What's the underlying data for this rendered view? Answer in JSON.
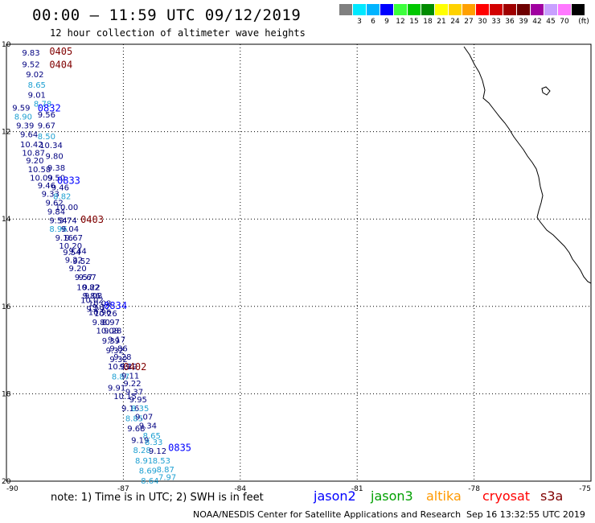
{
  "header": {
    "title": "00:00 – 11:59 UTC 09/12/2019",
    "subtitle": "12 hour collection of altimeter wave heights"
  },
  "scale": {
    "unit": "(ft)",
    "bins": [
      {
        "label": "",
        "color": "#808080"
      },
      {
        "label": "3",
        "color": "#00e8ff"
      },
      {
        "label": "6",
        "color": "#00b4ff"
      },
      {
        "label": "9",
        "color": "#0000ff"
      },
      {
        "label": "12",
        "color": "#3cff3c"
      },
      {
        "label": "15",
        "color": "#00c800"
      },
      {
        "label": "18",
        "color": "#008c00"
      },
      {
        "label": "21",
        "color": "#ffff00"
      },
      {
        "label": "24",
        "color": "#ffd200"
      },
      {
        "label": "27",
        "color": "#ffa000"
      },
      {
        "label": "30",
        "color": "#ff0000"
      },
      {
        "label": "33",
        "color": "#d20000"
      },
      {
        "label": "36",
        "color": "#a00000"
      },
      {
        "label": "39",
        "color": "#6e0000"
      },
      {
        "label": "42",
        "color": "#a000a0"
      },
      {
        "label": "45",
        "color": "#c8a0ff"
      },
      {
        "label": "70",
        "color": "#ff78ff"
      },
      {
        "label": "",
        "color": "#000000"
      }
    ]
  },
  "map": {
    "lat_labels": [
      "10",
      "12",
      "14",
      "16",
      "18",
      "20"
    ],
    "lon_labels": [
      "-90",
      "-87",
      "-84",
      "-81",
      "-78",
      "-75"
    ],
    "lon_range": [
      -90,
      -75
    ],
    "lat_range": [
      10,
      20
    ]
  },
  "colors": {
    "navy": "#000080",
    "lightblue": "#1ea0d2",
    "blue": "#0000ff",
    "darkred": "#800000"
  },
  "track_labels": [
    {
      "text": "0405",
      "lon": -88.9,
      "lat": 10.15,
      "color": "darkred"
    },
    {
      "text": "0404",
      "lon": -88.9,
      "lat": 10.45,
      "color": "darkred"
    },
    {
      "text": "0832",
      "lon": -89.2,
      "lat": 11.45,
      "color": "blue"
    },
    {
      "text": "0833",
      "lon": -88.7,
      "lat": 13.1,
      "color": "blue"
    },
    {
      "text": "0403",
      "lon": -88.1,
      "lat": 14.0,
      "color": "darkred"
    },
    {
      "text": "0834",
      "lon": -87.5,
      "lat": 15.97,
      "color": "blue"
    },
    {
      "text": "0402",
      "lon": -87.0,
      "lat": 17.37,
      "color": "darkred"
    },
    {
      "text": "0835",
      "lon": -85.85,
      "lat": 19.22,
      "color": "blue"
    }
  ],
  "readings": [
    {
      "v": "9.83",
      "lon": -89.6,
      "lat": 10.18,
      "c": "navy"
    },
    {
      "v": "9.52",
      "lon": -89.6,
      "lat": 10.45,
      "c": "navy"
    },
    {
      "v": "9.02",
      "lon": -89.5,
      "lat": 10.68,
      "c": "navy"
    },
    {
      "v": "8.65",
      "lon": -89.45,
      "lat": 10.92,
      "c": "lightblue"
    },
    {
      "v": "9.01",
      "lon": -89.45,
      "lat": 11.15,
      "c": "navy"
    },
    {
      "v": "8.78",
      "lon": -89.3,
      "lat": 11.35,
      "c": "lightblue"
    },
    {
      "v": "9.59",
      "lon": -89.85,
      "lat": 11.45,
      "c": "navy"
    },
    {
      "v": "8.90",
      "lon": -89.8,
      "lat": 11.65,
      "c": "lightblue"
    },
    {
      "v": "9.56",
      "lon": -89.2,
      "lat": 11.6,
      "c": "navy"
    },
    {
      "v": "9.39",
      "lon": -89.75,
      "lat": 11.85,
      "c": "navy"
    },
    {
      "v": "9.67",
      "lon": -89.2,
      "lat": 11.85,
      "c": "navy"
    },
    {
      "v": "9.64",
      "lon": -89.65,
      "lat": 12.05,
      "c": "navy"
    },
    {
      "v": "8.50",
      "lon": -89.2,
      "lat": 12.1,
      "c": "lightblue"
    },
    {
      "v": "10.42",
      "lon": -89.65,
      "lat": 12.28,
      "c": "navy"
    },
    {
      "v": "10.34",
      "lon": -89.15,
      "lat": 12.3,
      "c": "navy"
    },
    {
      "v": "10.87",
      "lon": -89.6,
      "lat": 12.48,
      "c": "navy"
    },
    {
      "v": "9.80",
      "lon": -89.0,
      "lat": 12.55,
      "c": "navy"
    },
    {
      "v": "9.20",
      "lon": -89.5,
      "lat": 12.65,
      "c": "navy"
    },
    {
      "v": "10.58",
      "lon": -89.45,
      "lat": 12.85,
      "c": "navy"
    },
    {
      "v": "9.38",
      "lon": -88.95,
      "lat": 12.82,
      "c": "navy"
    },
    {
      "v": "10.09",
      "lon": -89.4,
      "lat": 13.05,
      "c": "navy"
    },
    {
      "v": "9.50",
      "lon": -88.95,
      "lat": 13.05,
      "c": "navy"
    },
    {
      "v": "9.46",
      "lon": -89.2,
      "lat": 13.22,
      "c": "navy"
    },
    {
      "v": "9.46",
      "lon": -88.85,
      "lat": 13.27,
      "c": "navy"
    },
    {
      "v": "9.33",
      "lon": -89.1,
      "lat": 13.42,
      "c": "navy"
    },
    {
      "v": "8.82",
      "lon": -88.8,
      "lat": 13.47,
      "c": "lightblue"
    },
    {
      "v": "9.62",
      "lon": -89.0,
      "lat": 13.62,
      "c": "navy"
    },
    {
      "v": "10.00",
      "lon": -88.75,
      "lat": 13.72,
      "c": "navy"
    },
    {
      "v": "9.84",
      "lon": -88.95,
      "lat": 13.82,
      "c": "navy"
    },
    {
      "v": "9.54",
      "lon": -88.9,
      "lat": 14.02,
      "c": "navy"
    },
    {
      "v": "9.74",
      "lon": -88.65,
      "lat": 14.02,
      "c": "navy"
    },
    {
      "v": "8.96",
      "lon": -88.9,
      "lat": 14.22,
      "c": "lightblue"
    },
    {
      "v": "9.04",
      "lon": -88.6,
      "lat": 14.22,
      "c": "navy"
    },
    {
      "v": "9.16",
      "lon": -88.75,
      "lat": 14.42,
      "c": "navy"
    },
    {
      "v": "9.67",
      "lon": -88.5,
      "lat": 14.42,
      "c": "navy"
    },
    {
      "v": "10.20",
      "lon": -88.65,
      "lat": 14.6,
      "c": "navy"
    },
    {
      "v": "9.54",
      "lon": -88.55,
      "lat": 14.75,
      "c": "navy"
    },
    {
      "v": "9.44",
      "lon": -88.4,
      "lat": 14.72,
      "c": "navy"
    },
    {
      "v": "9.22",
      "lon": -88.5,
      "lat": 14.93,
      "c": "navy"
    },
    {
      "v": "9.52",
      "lon": -88.3,
      "lat": 14.95,
      "c": "navy"
    },
    {
      "v": "9.20",
      "lon": -88.4,
      "lat": 15.12,
      "c": "navy"
    },
    {
      "v": "9.57",
      "lon": -88.25,
      "lat": 15.32,
      "c": "navy"
    },
    {
      "v": "9.67",
      "lon": -88.15,
      "lat": 15.32,
      "c": "navy"
    },
    {
      "v": "10.82",
      "lon": -88.2,
      "lat": 15.55,
      "c": "navy"
    },
    {
      "v": "9.22",
      "lon": -88.05,
      "lat": 15.55,
      "c": "navy"
    },
    {
      "v": "9.86",
      "lon": -88.05,
      "lat": 15.75,
      "c": "navy"
    },
    {
      "v": "9.08",
      "lon": -88.0,
      "lat": 15.75,
      "c": "navy"
    },
    {
      "v": "10.02",
      "lon": -88.1,
      "lat": 15.85,
      "c": "navy"
    },
    {
      "v": "10.08",
      "lon": -87.9,
      "lat": 15.92,
      "c": "navy"
    },
    {
      "v": "9.29",
      "lon": -87.95,
      "lat": 16.05,
      "c": "navy"
    },
    {
      "v": "9.37",
      "lon": -87.8,
      "lat": 16.0,
      "c": "navy"
    },
    {
      "v": "10.96",
      "lon": -87.9,
      "lat": 16.12,
      "c": "navy"
    },
    {
      "v": "10.26",
      "lon": -87.75,
      "lat": 16.15,
      "c": "navy"
    },
    {
      "v": "9.80",
      "lon": -87.8,
      "lat": 16.35,
      "c": "navy"
    },
    {
      "v": "8.97",
      "lon": -87.55,
      "lat": 16.35,
      "c": "navy"
    },
    {
      "v": "10.08",
      "lon": -87.7,
      "lat": 16.55,
      "c": "navy"
    },
    {
      "v": "9.28",
      "lon": -87.5,
      "lat": 16.55,
      "c": "navy"
    },
    {
      "v": "9.39",
      "lon": -87.55,
      "lat": 16.78,
      "c": "navy"
    },
    {
      "v": "9.17",
      "lon": -87.4,
      "lat": 16.75,
      "c": "navy"
    },
    {
      "v": "9.86",
      "lon": -87.35,
      "lat": 16.95,
      "c": "navy"
    },
    {
      "v": "9.32",
      "lon": -87.45,
      "lat": 17.0,
      "c": "navy"
    },
    {
      "v": "9.28",
      "lon": -87.25,
      "lat": 17.15,
      "c": "navy"
    },
    {
      "v": "9.32",
      "lon": -87.35,
      "lat": 17.2,
      "c": "navy"
    },
    {
      "v": "10.99",
      "lon": -87.4,
      "lat": 17.37,
      "c": "navy"
    },
    {
      "v": "9.29",
      "lon": -87.1,
      "lat": 17.37,
      "c": "navy"
    },
    {
      "v": "8.87",
      "lon": -87.3,
      "lat": 17.6,
      "c": "lightblue"
    },
    {
      "v": "9.11",
      "lon": -87.05,
      "lat": 17.58,
      "c": "navy"
    },
    {
      "v": "9.22",
      "lon": -87.0,
      "lat": 17.75,
      "c": "navy"
    },
    {
      "v": "9.91",
      "lon": -87.4,
      "lat": 17.85,
      "c": "navy"
    },
    {
      "v": "9.37",
      "lon": -86.95,
      "lat": 17.95,
      "c": "navy"
    },
    {
      "v": "10.15",
      "lon": -87.25,
      "lat": 18.05,
      "c": "navy"
    },
    {
      "v": "9.95",
      "lon": -86.85,
      "lat": 18.12,
      "c": "navy"
    },
    {
      "v": "9.16",
      "lon": -87.05,
      "lat": 18.32,
      "c": "navy"
    },
    {
      "v": "8.35",
      "lon": -86.8,
      "lat": 18.32,
      "c": "lightblue"
    },
    {
      "v": "8.85",
      "lon": -86.95,
      "lat": 18.55,
      "c": "lightblue"
    },
    {
      "v": "9.07",
      "lon": -86.7,
      "lat": 18.52,
      "c": "navy"
    },
    {
      "v": "9.68",
      "lon": -86.9,
      "lat": 18.78,
      "c": "navy"
    },
    {
      "v": "9.34",
      "lon": -86.6,
      "lat": 18.72,
      "c": "navy"
    },
    {
      "v": "8.65",
      "lon": -86.5,
      "lat": 18.95,
      "c": "lightblue"
    },
    {
      "v": "9.19",
      "lon": -86.8,
      "lat": 19.05,
      "c": "navy"
    },
    {
      "v": "8.33",
      "lon": -86.45,
      "lat": 19.1,
      "c": "lightblue"
    },
    {
      "v": "8.28",
      "lon": -86.75,
      "lat": 19.28,
      "c": "lightblue"
    },
    {
      "v": "9.12",
      "lon": -86.35,
      "lat": 19.3,
      "c": "navy"
    },
    {
      "v": "8.91",
      "lon": -86.7,
      "lat": 19.52,
      "c": "lightblue"
    },
    {
      "v": "8.53",
      "lon": -86.25,
      "lat": 19.52,
      "c": "lightblue"
    },
    {
      "v": "8.69",
      "lon": -86.6,
      "lat": 19.75,
      "c": "lightblue"
    },
    {
      "v": "8.87",
      "lon": -86.15,
      "lat": 19.72,
      "c": "lightblue"
    },
    {
      "v": "8.64",
      "lon": -86.55,
      "lat": 19.98,
      "c": "lightblue"
    },
    {
      "v": "7.97",
      "lon": -86.1,
      "lat": 19.9,
      "c": "lightblue"
    }
  ],
  "footer": {
    "note": "note:  1) Time is in UTC;  2) SWH is in feet",
    "missions": [
      {
        "name": "jason2",
        "color": "#0000ff"
      },
      {
        "name": "jason3",
        "color": "#00a000"
      },
      {
        "name": "altika",
        "color": "#ff9900"
      },
      {
        "name": "cryosat",
        "color": "#ff0000"
      },
      {
        "name": "s3a",
        "color": "#800000"
      }
    ],
    "credit": "NOAA/NESDIS Center for Satellite Applications and Research",
    "timestamp": "Sep 16 13:32:55 UTC 2019"
  }
}
